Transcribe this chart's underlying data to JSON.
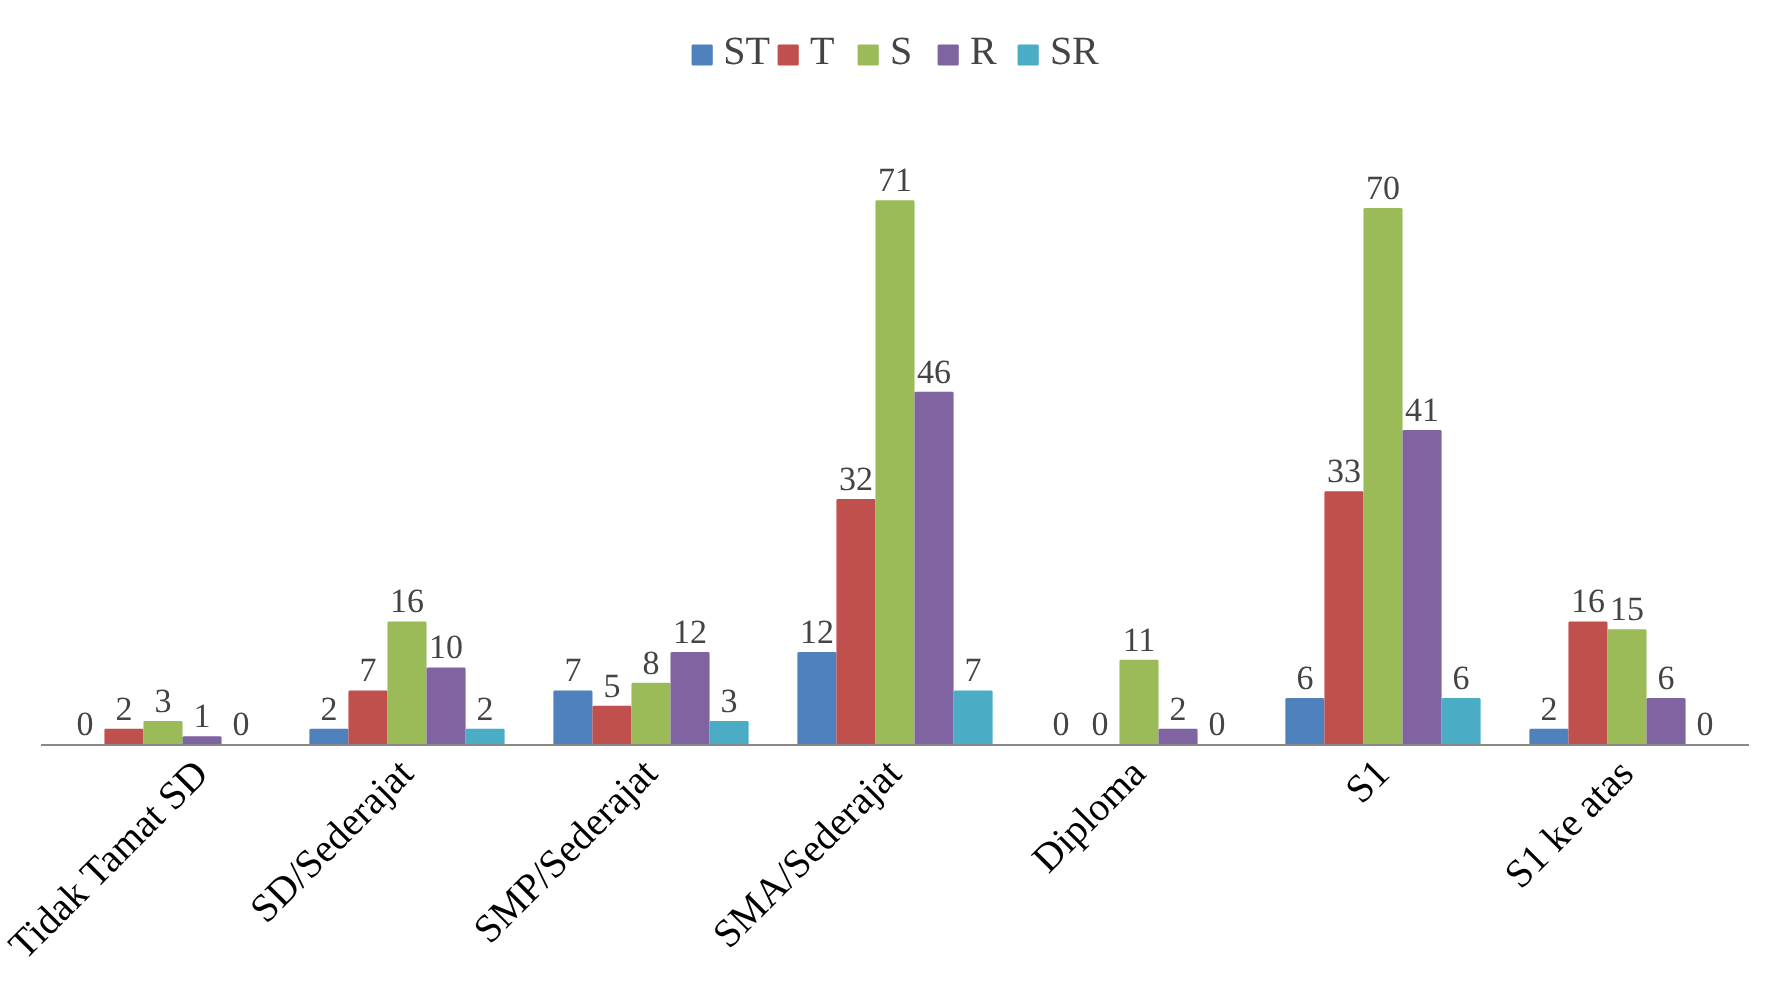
{
  "chart_data": {
    "type": "bar",
    "categories": [
      "Tidak Tamat SD",
      "SD/Sederajat",
      "SMP/Sederajat",
      "SMA/Sederajat",
      "Diploma",
      "S1",
      "S1 ke atas"
    ],
    "series": [
      {
        "name": "ST",
        "color": "#4f81bd",
        "values": [
          0,
          2,
          7,
          12,
          0,
          6,
          2
        ]
      },
      {
        "name": "T",
        "color": "#c0504d",
        "values": [
          2,
          7,
          5,
          32,
          0,
          33,
          16
        ]
      },
      {
        "name": "S",
        "color": "#9bbb59",
        "values": [
          3,
          16,
          8,
          71,
          11,
          70,
          15
        ]
      },
      {
        "name": "R",
        "color": "#8064a2",
        "values": [
          1,
          10,
          12,
          46,
          2,
          41,
          6
        ]
      },
      {
        "name": "SR",
        "color": "#4bacc6",
        "values": [
          0,
          2,
          3,
          7,
          0,
          6,
          0
        ]
      }
    ],
    "data_labels": true,
    "legend": "top"
  }
}
